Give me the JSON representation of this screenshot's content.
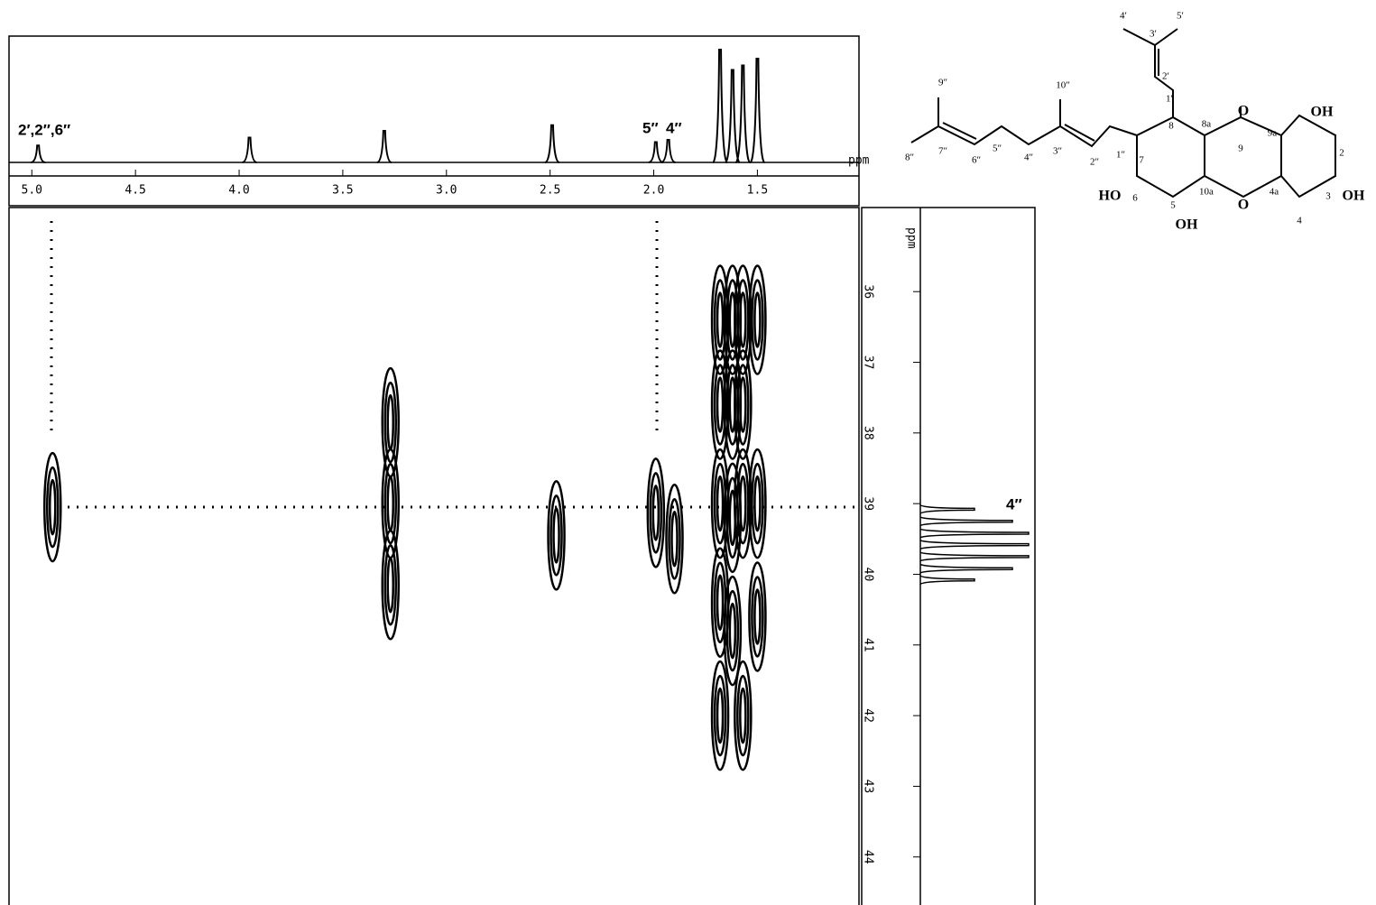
{
  "chart_data": {
    "type": "contour",
    "x_label": "ppm",
    "y_label": "ppm",
    "xlim": [
      5.11,
      1.01
    ],
    "xticks": [
      {
        "value": 5,
        "label": "5.0"
      },
      4.5,
      {
        "value": 4,
        "label": "4.0"
      },
      3.5,
      {
        "value": 3,
        "label": "3.0"
      },
      2.5,
      {
        "value": 2,
        "label": "2.0"
      },
      1.5
    ],
    "ylim": [
      34.81,
      44.68
    ],
    "yticks": [
      36,
      37,
      38,
      39,
      40,
      41,
      42,
      43,
      44
    ],
    "proton_spectrum": {
      "x": [
        4.97,
        3.95,
        3.3,
        2.49,
        1.99,
        1.93,
        1.68,
        1.62,
        1.57,
        1.5
      ],
      "values": [
        15,
        22,
        28,
        33,
        18,
        20,
        100,
        82,
        86,
        92
      ],
      "annotations": [
        "2′,2″,6″",
        "5″",
        "4″"
      ]
    },
    "carbon_spectrum": {
      "x": [
        39.08,
        39.25,
        39.42,
        39.58,
        39.75,
        39.92,
        40.08
      ],
      "values": [
        50,
        85,
        100,
        100,
        100,
        85,
        50
      ],
      "annotation": "4″"
    },
    "cross_peaks": {
      "x": [
        4.9,
        3.27,
        3.27,
        3.27,
        2.47,
        1.99,
        1.9,
        1.68,
        1.68,
        1.68,
        1.68,
        1.68,
        1.62,
        1.62,
        1.62,
        1.62,
        1.57,
        1.57,
        1.57,
        1.57,
        1.5,
        1.5,
        1.5
      ],
      "values": [
        39.05,
        39.0,
        40.15,
        37.85,
        39.45,
        39.13,
        39.5,
        36.4,
        37.6,
        39.0,
        40.4,
        42.0,
        36.4,
        37.6,
        39.2,
        40.8,
        36.4,
        37.6,
        39.0,
        42.0,
        36.4,
        39.0,
        40.6
      ]
    }
  },
  "structure": {
    "labels": [
      "4′",
      "5′",
      "3′",
      "2′",
      "1′",
      "8",
      "8a",
      "O",
      "9",
      "9a",
      "OH",
      "2",
      "3",
      "OH",
      "4",
      "4a",
      "O",
      "10a",
      "5",
      "OH",
      "6",
      "HO",
      "7",
      "1″",
      "2″",
      "3″",
      "10″",
      "4″",
      "5″",
      "6″",
      "7″",
      "9″",
      "8″"
    ]
  }
}
